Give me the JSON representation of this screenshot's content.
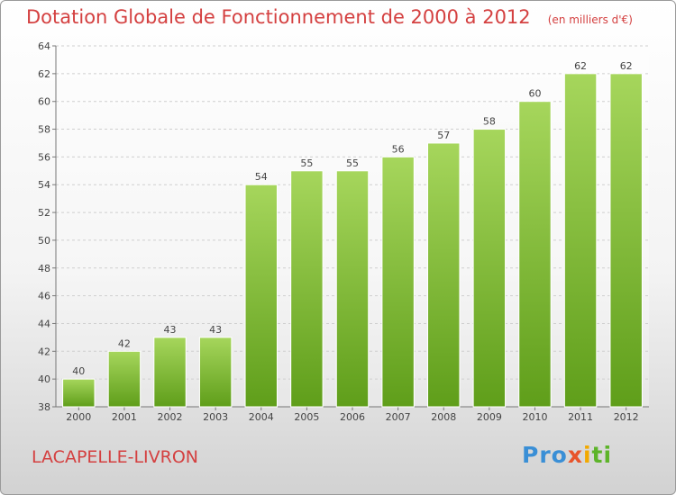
{
  "chart_data": {
    "type": "bar",
    "title": "Dotation Globale de Fonctionnement de 2000 à 2012",
    "unit_label": "(en milliers d'€)",
    "categories": [
      "2000",
      "2001",
      "2002",
      "2003",
      "2004",
      "2005",
      "2006",
      "2007",
      "2008",
      "2009",
      "2010",
      "2011",
      "2012"
    ],
    "values": [
      40,
      42,
      43,
      43,
      54,
      55,
      55,
      56,
      57,
      58,
      60,
      62,
      62
    ],
    "ylim": [
      38,
      64
    ],
    "yticks": [
      38,
      40,
      42,
      44,
      46,
      48,
      50,
      52,
      54,
      56,
      58,
      60,
      62,
      64
    ],
    "grid": true,
    "bar_color_top": "#a6d65c",
    "bar_color_bottom": "#5f9e1a"
  },
  "commune": "LACAPELLE-LIVRON",
  "logo": {
    "p1": "Pro",
    "p2": "x",
    "p3": "i",
    "p4": "ti"
  }
}
